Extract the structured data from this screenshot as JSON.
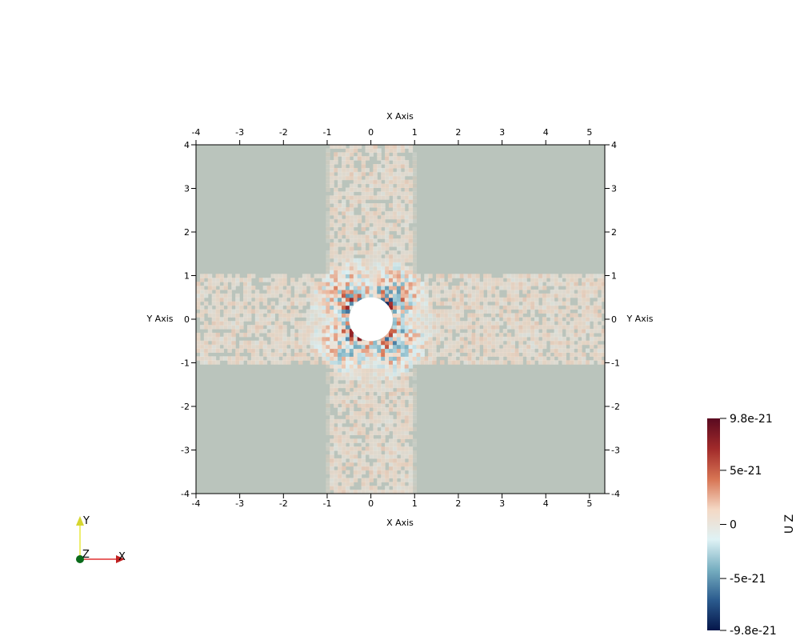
{
  "chart_data": {
    "type": "heatmap",
    "field_name": "U Z",
    "x_axis_label": "X Axis",
    "y_axis_label": "Y Axis",
    "xlim": [
      -4,
      5.35
    ],
    "ylim": [
      -4,
      4
    ],
    "x_ticks": [
      -4,
      -3,
      -2,
      -1,
      0,
      1,
      2,
      3,
      4,
      5
    ],
    "y_ticks": [
      -4,
      -3,
      -2,
      -1,
      0,
      1,
      2,
      3,
      4
    ],
    "x_tick_labels": [
      "-4",
      "-3",
      "-2",
      "-1",
      "0",
      "1",
      "2",
      "3",
      "4",
      "5"
    ],
    "y_tick_labels": [
      "-4",
      "-3",
      "-2",
      "-1",
      "0",
      "1",
      "2",
      "3",
      "4"
    ],
    "hole": {
      "center": [
        0,
        0
      ],
      "radius": 0.5
    },
    "band_half_width": 1.05,
    "colorbar": {
      "range": [
        -9.8e-21,
        9.8e-21
      ],
      "tick_values": [
        9.8e-21,
        5e-21,
        0,
        -5e-21,
        -9.8e-21
      ],
      "tick_labels": [
        "9.8e-21",
        "5e-21",
        "0",
        "-5e-21",
        "-9.8e-21"
      ],
      "colormap": "Cool to Warm (Extended)",
      "stops": [
        "#05164a",
        "#2b5b8e",
        "#76aec0",
        "#dff2f5",
        "#f4d8c4",
        "#d77453",
        "#a12a2a",
        "#5a0a20"
      ]
    },
    "background_value_color": "#bac4bc",
    "grid": false
  },
  "orientation_axes": {
    "x": "X",
    "y": "Y",
    "z": "Z"
  },
  "colors": {
    "axis_x": "#e03030",
    "axis_y": "#e8e840",
    "axis_z": "#0a6a1a",
    "background": "#ffffff"
  }
}
